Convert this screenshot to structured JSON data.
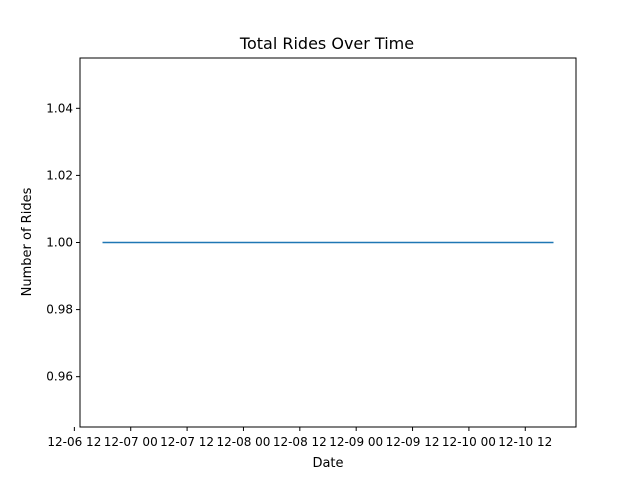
{
  "chart_data": {
    "type": "line",
    "title": "Total Rides Over Time",
    "xlabel": "Date",
    "ylabel": "Number of Rides",
    "x_tick_labels": [
      "12-06 12",
      "12-07 00",
      "12-07 12",
      "12-08 00",
      "12-08 12",
      "12-09 00",
      "12-09 12",
      "12-10 00",
      "12-10 12"
    ],
    "y_ticks": [
      0.96,
      0.98,
      1.0,
      1.02,
      1.04
    ],
    "y_tick_labels": [
      "0.96",
      "0.98",
      "1.00",
      "1.02",
      "1.04"
    ],
    "ylim": [
      0.945,
      1.055
    ],
    "grid": false,
    "series": [
      {
        "color": "#1f77b4",
        "x": [
          "12-06 18",
          "12-10 18"
        ],
        "y": [
          1,
          1
        ]
      }
    ]
  }
}
